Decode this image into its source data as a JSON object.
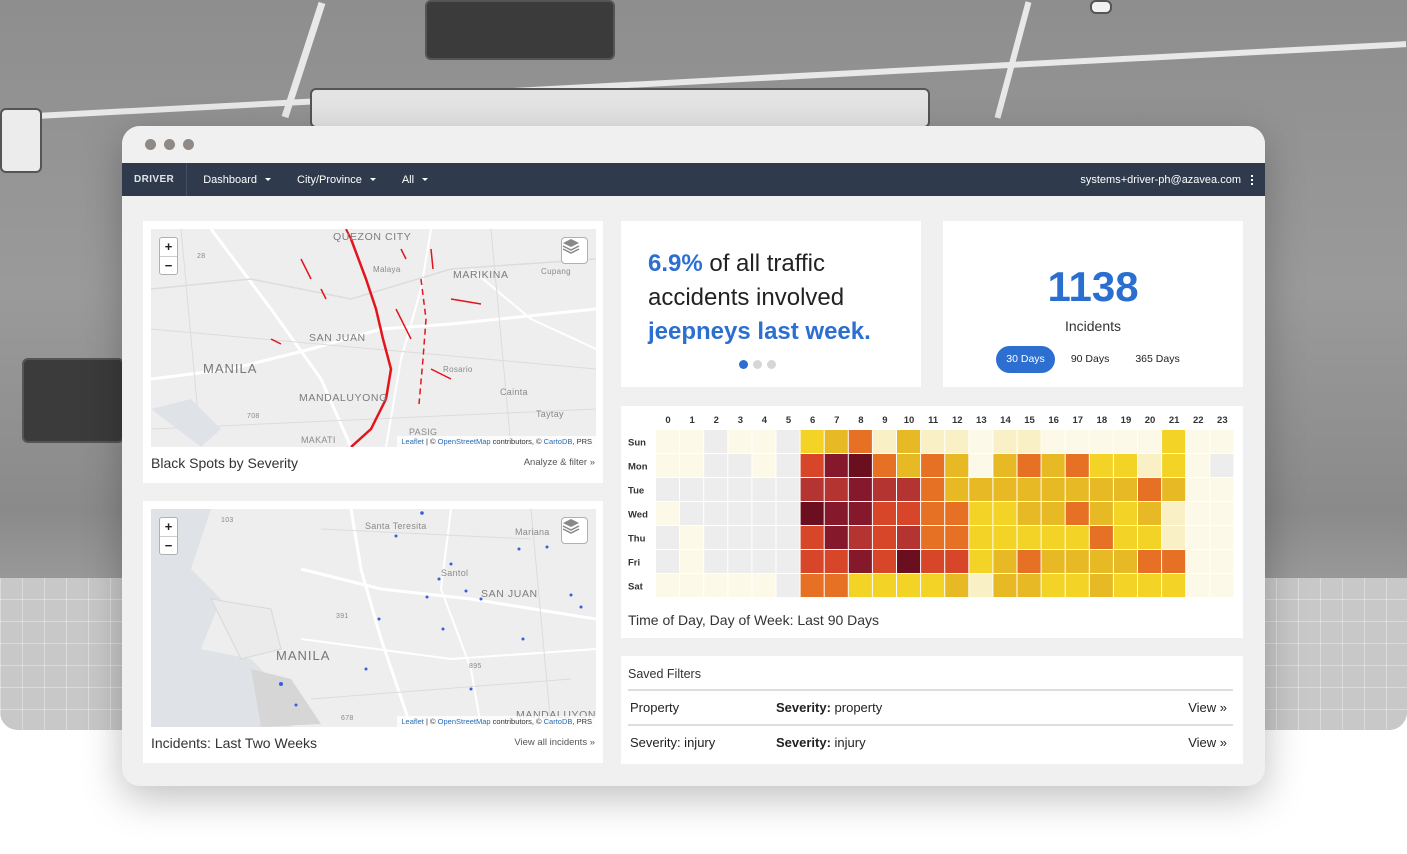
{
  "navbar": {
    "brand": "DRIVER",
    "menus": [
      "Dashboard",
      "City/Province",
      "All"
    ],
    "user": "systems+driver-ph@azavea.com"
  },
  "map1": {
    "zoom_in": "+",
    "zoom_out": "−",
    "labels": [
      "QUEZON CITY",
      "MARIKINA",
      "SAN JUAN",
      "MANILA",
      "MANDALUYONG",
      "Malaya",
      "Cupang",
      "Rosario",
      "Cainta",
      "Taytay",
      "MAKATI",
      "PASIG",
      "28",
      "708"
    ],
    "attribution_leaflet": "Leaflet",
    "attribution_osm": "OpenStreetMap",
    "attribution_mid": " contributors, © ",
    "attribution_cartodb": "CartoDB",
    "attribution_end": ", PRS",
    "title": "Black Spots by Severity",
    "link": "Analyze & filter »"
  },
  "map2": {
    "zoom_in": "+",
    "zoom_out": "−",
    "labels": [
      "Santa Teresita",
      "Mariana",
      "Santol",
      "SAN JUAN",
      "MANILA",
      "MANDALUYONG",
      "103",
      "391",
      "895",
      "678"
    ],
    "attribution_leaflet": "Leaflet",
    "attribution_osm": "OpenStreetMap",
    "attribution_mid": " contributors, © ",
    "attribution_cartodb": "CartoDB",
    "attribution_end": ", PRS",
    "title": "Incidents: Last Two Weeks",
    "link": "View all incidents »"
  },
  "stat": {
    "pct": "6.9%",
    "text1": " of all traffic accidents involved ",
    "highlight": "jeepneys last week.",
    "active_slide": 0,
    "slides": 3
  },
  "incidents": {
    "count": "1138",
    "label": "Incidents",
    "ranges": [
      "30 Days",
      "90 Days",
      "365 Days"
    ],
    "active_range": "30 Days"
  },
  "heatmap": {
    "hours": [
      "0",
      "1",
      "2",
      "3",
      "4",
      "5",
      "6",
      "7",
      "8",
      "9",
      "10",
      "11",
      "12",
      "13",
      "14",
      "15",
      "16",
      "17",
      "18",
      "19",
      "20",
      "21",
      "22",
      "23"
    ],
    "days": [
      "Sun",
      "Mon",
      "Tue",
      "Wed",
      "Thu",
      "Fri",
      "Sat"
    ],
    "title": "Time of Day, Day of Week: Last 90 Days",
    "palette": [
      "#fdf9e8",
      "#ededed",
      "#f9f1c5",
      "#f4d327",
      "#e7b925",
      "#e67124",
      "#d8462a",
      "#b33430",
      "#85192b",
      "#6b0f20"
    ],
    "levels": [
      [
        0,
        0,
        1,
        0,
        0,
        1,
        3,
        4,
        5,
        2,
        4,
        2,
        2,
        0,
        2,
        2,
        0,
        0,
        0,
        0,
        0,
        3,
        0,
        0
      ],
      [
        0,
        0,
        1,
        1,
        0,
        1,
        6,
        8,
        9,
        5,
        4,
        5,
        4,
        0,
        4,
        5,
        4,
        5,
        3,
        3,
        2,
        3,
        0,
        1
      ],
      [
        1,
        1,
        1,
        1,
        1,
        1,
        7,
        7,
        8,
        7,
        7,
        5,
        4,
        4,
        4,
        4,
        4,
        4,
        4,
        4,
        5,
        4,
        0,
        0
      ],
      [
        0,
        1,
        1,
        1,
        1,
        1,
        9,
        8,
        8,
        6,
        6,
        5,
        5,
        3,
        3,
        4,
        4,
        5,
        4,
        3,
        4,
        2,
        0,
        0
      ],
      [
        1,
        0,
        1,
        1,
        1,
        1,
        6,
        8,
        7,
        6,
        7,
        5,
        5,
        3,
        3,
        3,
        3,
        3,
        5,
        3,
        3,
        2,
        0,
        0
      ],
      [
        1,
        0,
        1,
        1,
        1,
        1,
        6,
        6,
        8,
        6,
        9,
        6,
        6,
        3,
        4,
        5,
        4,
        4,
        4,
        4,
        5,
        5,
        0,
        0
      ],
      [
        0,
        0,
        0,
        0,
        0,
        1,
        5,
        5,
        3,
        3,
        3,
        3,
        4,
        2,
        4,
        4,
        3,
        3,
        4,
        3,
        3,
        3,
        0,
        0
      ]
    ]
  },
  "saved_filters": {
    "title": "Saved Filters",
    "rows": [
      {
        "name": "Property",
        "key": "Severity:",
        "value": " property",
        "action": "View »"
      },
      {
        "name": "Severity: injury",
        "key": "Severity:",
        "value": " injury",
        "action": "View »"
      }
    ]
  }
}
